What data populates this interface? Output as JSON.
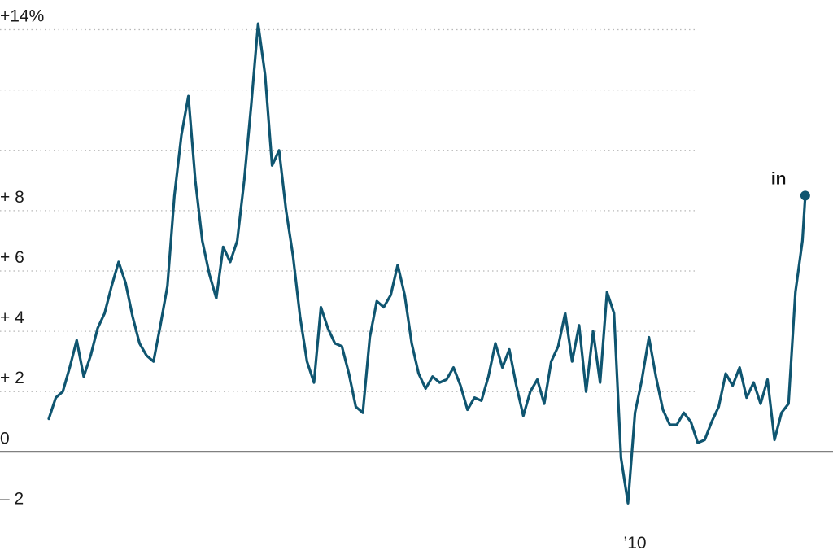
{
  "chart_data": {
    "type": "line",
    "title": "",
    "xlabel": "",
    "ylabel": "",
    "xlim": [
      1968.0,
      2022.5
    ],
    "ylim": [
      -2.5,
      14.5
    ],
    "y_ticks": [
      {
        "value": 14,
        "label": "+14%"
      },
      {
        "value": 8,
        "label": "+ 8"
      },
      {
        "value": 6,
        "label": "+ 6"
      },
      {
        "value": 4,
        "label": "+ 4"
      },
      {
        "value": 2,
        "label": "+ 2"
      },
      {
        "value": 0,
        "label": "0"
      },
      {
        "value": -2,
        "label": "– 2"
      }
    ],
    "y_grid": [
      14,
      12,
      10,
      8,
      6,
      4,
      2
    ],
    "x_ticks": [
      {
        "value": 2010,
        "label": "’10"
      }
    ],
    "annotation": {
      "text": "in",
      "x": 2021.85,
      "y": 8.5
    },
    "series": [
      {
        "color": "#0f5570",
        "end_marker": true,
        "points": [
          [
            1968.0,
            1.1
          ],
          [
            1968.5,
            1.8
          ],
          [
            1969.0,
            2.0
          ],
          [
            1969.5,
            2.8
          ],
          [
            1970.0,
            3.7
          ],
          [
            1970.5,
            2.5
          ],
          [
            1971.0,
            3.2
          ],
          [
            1971.5,
            4.1
          ],
          [
            1972.0,
            4.6
          ],
          [
            1972.5,
            5.5
          ],
          [
            1973.0,
            6.3
          ],
          [
            1973.5,
            5.6
          ],
          [
            1974.0,
            4.5
          ],
          [
            1974.5,
            3.6
          ],
          [
            1975.0,
            3.2
          ],
          [
            1975.5,
            3.0
          ],
          [
            1976.0,
            4.2
          ],
          [
            1976.5,
            5.5
          ],
          [
            1977.0,
            8.5
          ],
          [
            1977.5,
            10.5
          ],
          [
            1978.0,
            11.8
          ],
          [
            1978.5,
            9.0
          ],
          [
            1979.0,
            7.0
          ],
          [
            1979.5,
            5.9
          ],
          [
            1980.0,
            5.1
          ],
          [
            1980.5,
            6.8
          ],
          [
            1981.0,
            6.3
          ],
          [
            1981.5,
            7.0
          ],
          [
            1982.0,
            9.0
          ],
          [
            1982.5,
            11.5
          ],
          [
            1983.0,
            14.2
          ],
          [
            1983.5,
            12.5
          ],
          [
            1984.0,
            9.5
          ],
          [
            1984.5,
            10.0
          ],
          [
            1985.0,
            8.0
          ],
          [
            1985.5,
            6.5
          ],
          [
            1986.0,
            4.5
          ],
          [
            1986.5,
            3.0
          ],
          [
            1987.0,
            2.3
          ],
          [
            1987.5,
            4.8
          ],
          [
            1988.0,
            4.1
          ],
          [
            1988.5,
            3.6
          ],
          [
            1989.0,
            3.5
          ],
          [
            1989.5,
            2.6
          ],
          [
            1990.0,
            1.5
          ],
          [
            1990.5,
            1.3
          ],
          [
            1991.0,
            3.8
          ],
          [
            1991.5,
            5.0
          ],
          [
            1992.0,
            4.8
          ],
          [
            1992.5,
            5.2
          ],
          [
            1993.0,
            6.2
          ],
          [
            1993.5,
            5.2
          ],
          [
            1994.0,
            3.6
          ],
          [
            1994.5,
            2.6
          ],
          [
            1995.0,
            2.1
          ],
          [
            1995.5,
            2.5
          ],
          [
            1996.0,
            2.3
          ],
          [
            1996.5,
            2.4
          ],
          [
            1997.0,
            2.8
          ],
          [
            1997.5,
            2.2
          ],
          [
            1998.0,
            1.4
          ],
          [
            1998.5,
            1.8
          ],
          [
            1999.0,
            1.7
          ],
          [
            1999.5,
            2.5
          ],
          [
            2000.0,
            3.6
          ],
          [
            2000.5,
            2.8
          ],
          [
            2001.0,
            3.4
          ],
          [
            2001.5,
            2.2
          ],
          [
            2002.0,
            1.2
          ],
          [
            2002.5,
            2.0
          ],
          [
            2003.0,
            2.4
          ],
          [
            2003.5,
            1.6
          ],
          [
            2004.0,
            3.0
          ],
          [
            2004.5,
            3.5
          ],
          [
            2005.0,
            4.6
          ],
          [
            2005.5,
            3.0
          ],
          [
            2006.0,
            4.2
          ],
          [
            2006.5,
            2.0
          ],
          [
            2007.0,
            4.0
          ],
          [
            2007.5,
            2.3
          ],
          [
            2008.0,
            5.3
          ],
          [
            2008.5,
            4.6
          ],
          [
            2009.0,
            -0.2
          ],
          [
            2009.5,
            -1.7
          ],
          [
            2010.0,
            1.3
          ],
          [
            2010.5,
            2.4
          ],
          [
            2011.0,
            3.8
          ],
          [
            2011.5,
            2.5
          ],
          [
            2012.0,
            1.4
          ],
          [
            2012.5,
            0.9
          ],
          [
            2013.0,
            0.9
          ],
          [
            2013.5,
            1.3
          ],
          [
            2014.0,
            1.0
          ],
          [
            2014.5,
            0.3
          ],
          [
            2015.0,
            0.4
          ],
          [
            2015.5,
            1.0
          ],
          [
            2016.0,
            1.5
          ],
          [
            2016.5,
            2.6
          ],
          [
            2017.0,
            2.2
          ],
          [
            2017.5,
            2.8
          ],
          [
            2018.0,
            1.8
          ],
          [
            2018.5,
            2.3
          ],
          [
            2019.0,
            1.6
          ],
          [
            2019.5,
            2.4
          ],
          [
            2020.0,
            0.4
          ],
          [
            2020.5,
            1.3
          ],
          [
            2021.0,
            1.6
          ],
          [
            2021.5,
            5.3
          ],
          [
            2022.0,
            7.0
          ],
          [
            2022.2,
            8.5
          ]
        ]
      }
    ]
  }
}
